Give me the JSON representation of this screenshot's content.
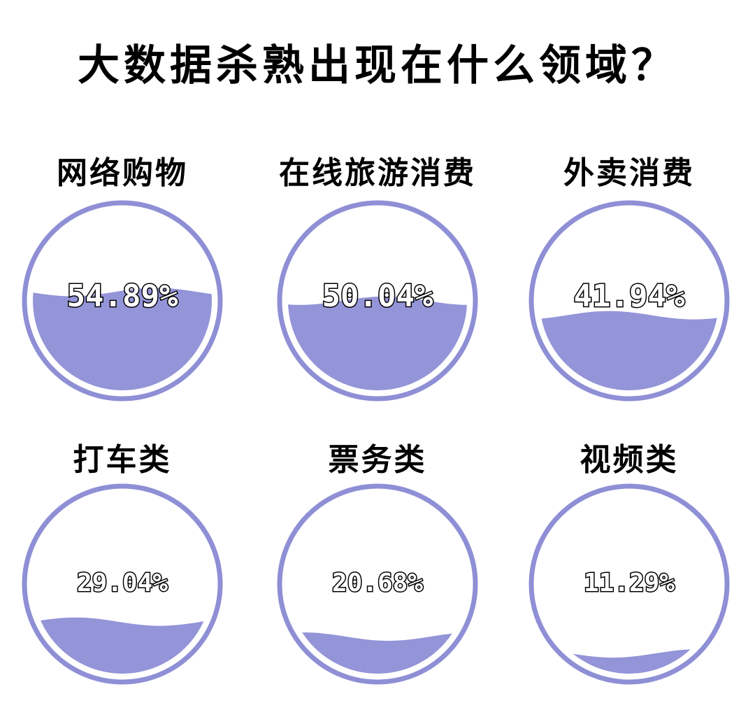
{
  "title": "大数据杀熟出现在什么领域？",
  "colors": {
    "ring": "#8f8fd6",
    "fill": "#9494d9"
  },
  "chart_data": {
    "type": "liquid-fill gauges",
    "title": "大数据杀熟出现在什么领域？",
    "categories": [
      "网络购物",
      "在线旅游消费",
      "外卖消费",
      "打车类",
      "票务类",
      "视频类"
    ],
    "values": [
      54.89,
      50.04,
      41.94,
      29.04,
      20.68,
      11.29
    ],
    "value_labels": [
      "54.89%",
      "50.04%",
      "41.94%",
      "29.04%",
      "20.68%",
      "11.29%"
    ],
    "unit": "%",
    "range": [
      0,
      100
    ]
  }
}
